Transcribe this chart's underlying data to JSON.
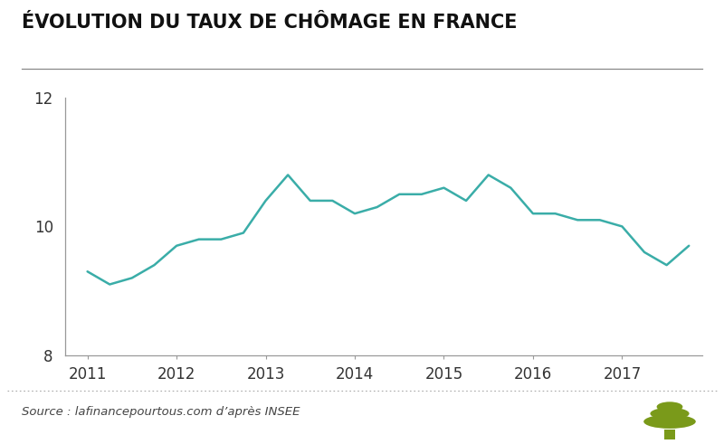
{
  "title": "ÉVOLUTION DU TAUX DE CHÔMAGE EN FRANCE",
  "source_text": "Source : lafinancepourtous.com d’après INSEE",
  "line_color": "#3aada8",
  "background_color": "#ffffff",
  "title_color": "#111111",
  "spine_color": "#999999",
  "x_values": [
    2011.0,
    2011.25,
    2011.5,
    2011.75,
    2012.0,
    2012.25,
    2012.5,
    2012.75,
    2013.0,
    2013.25,
    2013.5,
    2013.75,
    2014.0,
    2014.25,
    2014.5,
    2014.75,
    2015.0,
    2015.25,
    2015.5,
    2015.75,
    2016.0,
    2016.25,
    2016.5,
    2016.75,
    2017.0,
    2017.25,
    2017.5,
    2017.75
  ],
  "y_values": [
    9.3,
    9.1,
    9.2,
    9.4,
    9.7,
    9.8,
    9.8,
    9.9,
    10.4,
    10.8,
    10.4,
    10.4,
    10.2,
    10.3,
    10.5,
    10.5,
    10.6,
    10.4,
    10.8,
    10.6,
    10.2,
    10.2,
    10.1,
    10.1,
    10.0,
    9.6,
    9.4,
    9.7
  ],
  "ylim": [
    8,
    12
  ],
  "yticks": [
    8,
    10,
    12
  ],
  "xlim": [
    2010.75,
    2017.9
  ],
  "xticks": [
    2011,
    2012,
    2013,
    2014,
    2015,
    2016,
    2017
  ],
  "line_width": 1.8,
  "title_fontsize": 15,
  "tick_fontsize": 12,
  "source_fontsize": 9.5
}
